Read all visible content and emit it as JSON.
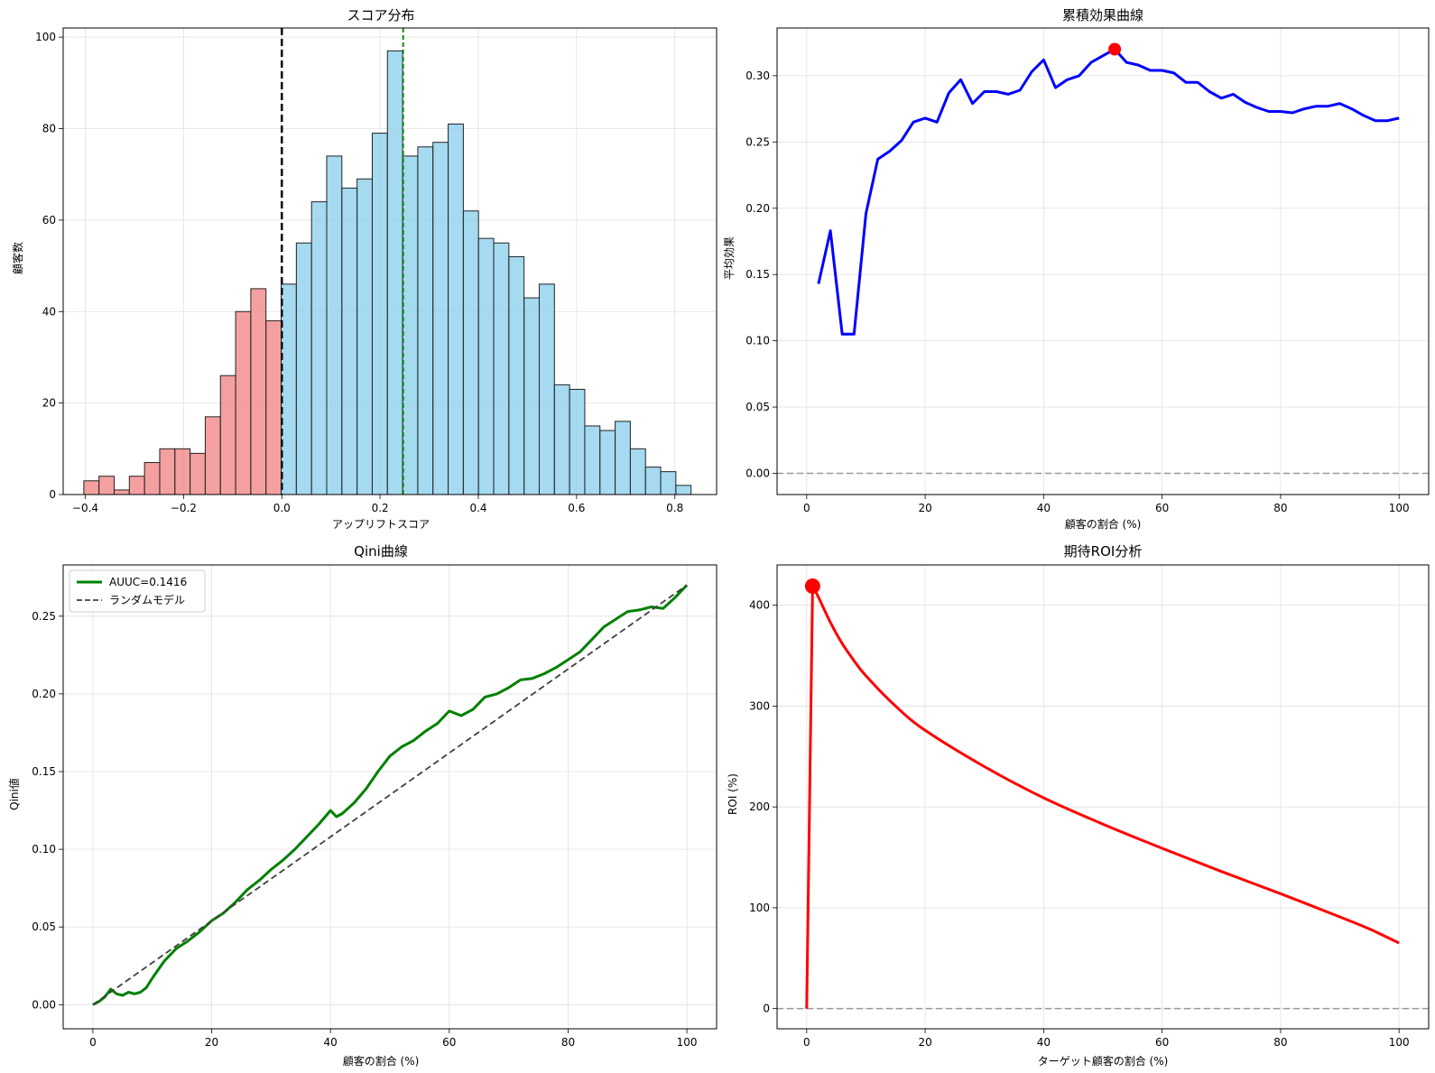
{
  "chart_data": [
    {
      "type": "bar",
      "title": "スコア分布",
      "xlabel": "アップリフトスコア",
      "ylabel": "顧客数",
      "xlim": [
        -0.445,
        0.885
      ],
      "ylim": [
        0,
        102
      ],
      "xticks": [
        -0.4,
        -0.2,
        0.0,
        0.2,
        0.4,
        0.6,
        0.8
      ],
      "xtick_labels": [
        "−0.4",
        "−0.2",
        "0.0",
        "0.2",
        "0.4",
        "0.6",
        "0.8"
      ],
      "yticks": [
        0,
        20,
        40,
        60,
        80,
        100
      ],
      "ytick_labels": [
        "0",
        "20",
        "40",
        "60",
        "80",
        "100"
      ],
      "bin_start": -0.403,
      "bin_width": 0.0309,
      "counts": [
        3,
        4,
        1,
        4,
        7,
        10,
        10,
        9,
        17,
        26,
        40,
        45,
        38,
        46,
        55,
        64,
        74,
        67,
        69,
        79,
        97,
        74,
        76,
        77,
        81,
        62,
        56,
        55,
        52,
        43,
        46,
        24,
        23,
        15,
        14,
        16,
        10,
        6,
        5,
        2
      ],
      "negative_color": "#f08080",
      "positive_color": "#87ceeb",
      "zero_line": 0.0,
      "mean_line": 0.247,
      "grid": true
    },
    {
      "type": "line",
      "title": "累積効果曲線",
      "xlabel": "顧客の割合 (%)",
      "ylabel": "平均効果",
      "xlim": [
        -5,
        105
      ],
      "ylim": [
        -0.016,
        0.336
      ],
      "xticks": [
        0,
        20,
        40,
        60,
        80,
        100
      ],
      "xtick_labels": [
        "0",
        "20",
        "40",
        "60",
        "80",
        "100"
      ],
      "yticks": [
        0.0,
        0.05,
        0.1,
        0.15,
        0.2,
        0.25,
        0.3
      ],
      "ytick_labels": [
        "0.00",
        "0.05",
        "0.10",
        "0.15",
        "0.20",
        "0.25",
        "0.30"
      ],
      "x": [
        2,
        4,
        6,
        8,
        10,
        12,
        14,
        16,
        18,
        20,
        22,
        24,
        26,
        28,
        30,
        32,
        34,
        36,
        38,
        40,
        42,
        44,
        46,
        48,
        50,
        52,
        54,
        56,
        58,
        60,
        62,
        64,
        66,
        68,
        70,
        72,
        74,
        76,
        78,
        80,
        82,
        84,
        86,
        88,
        90,
        92,
        94,
        96,
        98,
        100
      ],
      "y": [
        0.143,
        0.183,
        0.105,
        0.105,
        0.196,
        0.237,
        0.243,
        0.251,
        0.265,
        0.268,
        0.265,
        0.287,
        0.297,
        0.279,
        0.288,
        0.288,
        0.286,
        0.289,
        0.303,
        0.312,
        0.291,
        0.297,
        0.3,
        0.31,
        0.315,
        0.32,
        0.31,
        0.308,
        0.304,
        0.304,
        0.302,
        0.295,
        0.295,
        0.288,
        0.283,
        0.286,
        0.28,
        0.276,
        0.273,
        0.273,
        0.272,
        0.275,
        0.277,
        0.277,
        0.279,
        0.275,
        0.27,
        0.266,
        0.266,
        0.268
      ],
      "color": "#0000ff",
      "max_point": {
        "x": 52,
        "y": 0.32
      },
      "baseline": 0.0,
      "grid": true
    },
    {
      "type": "line",
      "title": "Qini曲線",
      "xlabel": "顧客の割合 (%)",
      "ylabel": "Qini値",
      "xlim": [
        -5,
        105
      ],
      "ylim": [
        -0.0155,
        0.283
      ],
      "xticks": [
        0,
        20,
        40,
        60,
        80,
        100
      ],
      "xtick_labels": [
        "0",
        "20",
        "40",
        "60",
        "80",
        "100"
      ],
      "yticks": [
        0.0,
        0.05,
        0.1,
        0.15,
        0.2,
        0.25
      ],
      "ytick_labels": [
        "0.00",
        "0.05",
        "0.10",
        "0.15",
        "0.20",
        "0.25"
      ],
      "legend_position": "top-left",
      "series": [
        {
          "name": "AUUC=0.1416",
          "color": "#008000",
          "x": [
            0,
            1,
            2,
            3,
            4,
            5,
            6,
            7,
            8,
            9,
            10,
            12,
            14,
            16,
            18,
            20,
            22,
            24,
            26,
            28,
            30,
            32,
            34,
            36,
            38,
            40,
            41,
            42,
            44,
            46,
            48,
            50,
            52,
            54,
            56,
            58,
            60,
            62,
            64,
            66,
            68,
            70,
            72,
            74,
            76,
            78,
            80,
            82,
            84,
            86,
            88,
            90,
            92,
            94,
            96,
            98,
            100
          ],
          "y": [
            0.0,
            0.002,
            0.005,
            0.01,
            0.007,
            0.006,
            0.008,
            0.007,
            0.008,
            0.011,
            0.017,
            0.028,
            0.036,
            0.041,
            0.047,
            0.054,
            0.059,
            0.066,
            0.074,
            0.08,
            0.087,
            0.093,
            0.1,
            0.108,
            0.116,
            0.125,
            0.121,
            0.123,
            0.13,
            0.139,
            0.15,
            0.16,
            0.166,
            0.17,
            0.176,
            0.181,
            0.189,
            0.186,
            0.19,
            0.198,
            0.2,
            0.204,
            0.209,
            0.21,
            0.213,
            0.217,
            0.222,
            0.227,
            0.235,
            0.243,
            0.248,
            0.253,
            0.254,
            0.256,
            0.255,
            0.262,
            0.27
          ]
        },
        {
          "name": "ランダムモデル",
          "color": "#404040",
          "x": [
            0,
            100
          ],
          "y": [
            0.0,
            0.27
          ]
        }
      ],
      "grid": true
    },
    {
      "type": "line",
      "title": "期待ROI分析",
      "xlabel": "ターゲット顧客の割合 (%)",
      "ylabel": "ROI (%)",
      "xlim": [
        -5,
        105
      ],
      "ylim": [
        -20,
        440
      ],
      "xticks": [
        0,
        20,
        40,
        60,
        80,
        100
      ],
      "xtick_labels": [
        "0",
        "20",
        "40",
        "60",
        "80",
        "100"
      ],
      "yticks": [
        0,
        100,
        200,
        300,
        400
      ],
      "ytick_labels": [
        "0",
        "100",
        "200",
        "300",
        "400"
      ],
      "x": [
        0,
        1,
        2,
        4,
        6,
        8,
        10,
        15,
        20,
        30,
        40,
        50,
        60,
        70,
        80,
        90,
        95,
        100
      ],
      "y": [
        0,
        419,
        408,
        383,
        362,
        345,
        330,
        300,
        276,
        240,
        209,
        183,
        159,
        136,
        114,
        91,
        79,
        65
      ],
      "color": "#ff0000",
      "max_point": {
        "x": 1,
        "y": 419
      },
      "baseline": 0,
      "grid": true
    }
  ]
}
